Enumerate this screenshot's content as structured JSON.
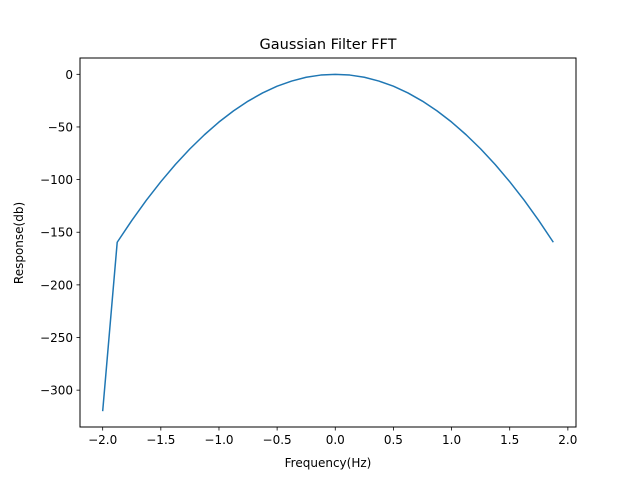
{
  "chart_data": {
    "type": "line",
    "title": "Gaussian Filter FFT",
    "xlabel": "Frequency(Hz)",
    "ylabel": "Response(db)",
    "xlim": [
      -2.195,
      2.07
    ],
    "ylim": [
      -335.0,
      15.5
    ],
    "xticks": [
      -2.0,
      -1.5,
      -1.0,
      -0.5,
      0.0,
      0.5,
      1.0,
      1.5,
      2.0
    ],
    "xtick_labels": [
      "−2.0",
      "−1.5",
      "−1.0",
      "−0.5",
      "0.0",
      "0.5",
      "1.0",
      "1.5",
      "2.0"
    ],
    "yticks": [
      0,
      -50,
      -100,
      -150,
      -200,
      -250,
      -300
    ],
    "ytick_labels": [
      "0",
      "−50",
      "−100",
      "−150",
      "−200",
      "−250",
      "−300"
    ],
    "grid": false,
    "series": [
      {
        "color": "#1f77b4",
        "x": [
          -2.0,
          -1.875,
          -1.75,
          -1.625,
          -1.5,
          -1.375,
          -1.25,
          -1.125,
          -1.0,
          -0.875,
          -0.75,
          -0.625,
          -0.5,
          -0.375,
          -0.25,
          -0.125,
          0.0,
          0.125,
          0.25,
          0.375,
          0.5,
          0.625,
          0.75,
          0.875,
          1.0,
          1.125,
          1.25,
          1.375,
          1.5,
          1.625,
          1.75,
          1.875
        ],
        "y": [
          -320.0,
          -159.5,
          -138.9,
          -119.7,
          -102.0,
          -85.7,
          -70.8,
          -57.4,
          -45.3,
          -34.7,
          -25.5,
          -17.7,
          -11.3,
          -6.4,
          -2.8,
          -0.7,
          0.0,
          -0.7,
          -2.8,
          -6.4,
          -11.3,
          -17.7,
          -25.5,
          -34.7,
          -45.3,
          -57.4,
          -70.8,
          -85.7,
          -102.0,
          -119.7,
          -138.9,
          -159.5
        ]
      }
    ]
  }
}
